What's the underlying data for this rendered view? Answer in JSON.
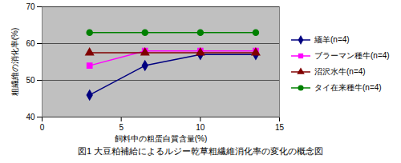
{
  "chart_data": {
    "type": "line",
    "title": "図1 大豆粕補給によるルジー乾草粗繊維消化率の変化の概念図",
    "x_label": "飼料中の粗蛋白質含量(%)",
    "y_label": "粗繊維の消化率(%)",
    "x": [
      3,
      6.5,
      10,
      13.5
    ],
    "series": [
      {
        "name": "緬羊(n=4)",
        "color": "#000080",
        "marker": "diamond",
        "values": [
          46,
          54,
          57,
          57
        ]
      },
      {
        "name": "ブラーマン種牛(n=4)",
        "color": "#ff00ff",
        "marker": "square",
        "values": [
          54,
          58,
          58,
          58
        ]
      },
      {
        "name": "沼沢水牛(n=4)",
        "color": "#800000",
        "marker": "triangle",
        "values": [
          57.5,
          57.5,
          57.5,
          57.5
        ]
      },
      {
        "name": "タイ在来種牛(n=4)",
        "color": "#008000",
        "marker": "circle",
        "values": [
          63,
          63,
          63,
          63
        ]
      }
    ],
    "xlim": [
      0,
      15
    ],
    "xticks": [
      0,
      5,
      10,
      15
    ],
    "ylim": [
      40,
      70
    ],
    "yticks": [
      40,
      50,
      60,
      70
    ],
    "grid": true,
    "legend": "right"
  }
}
